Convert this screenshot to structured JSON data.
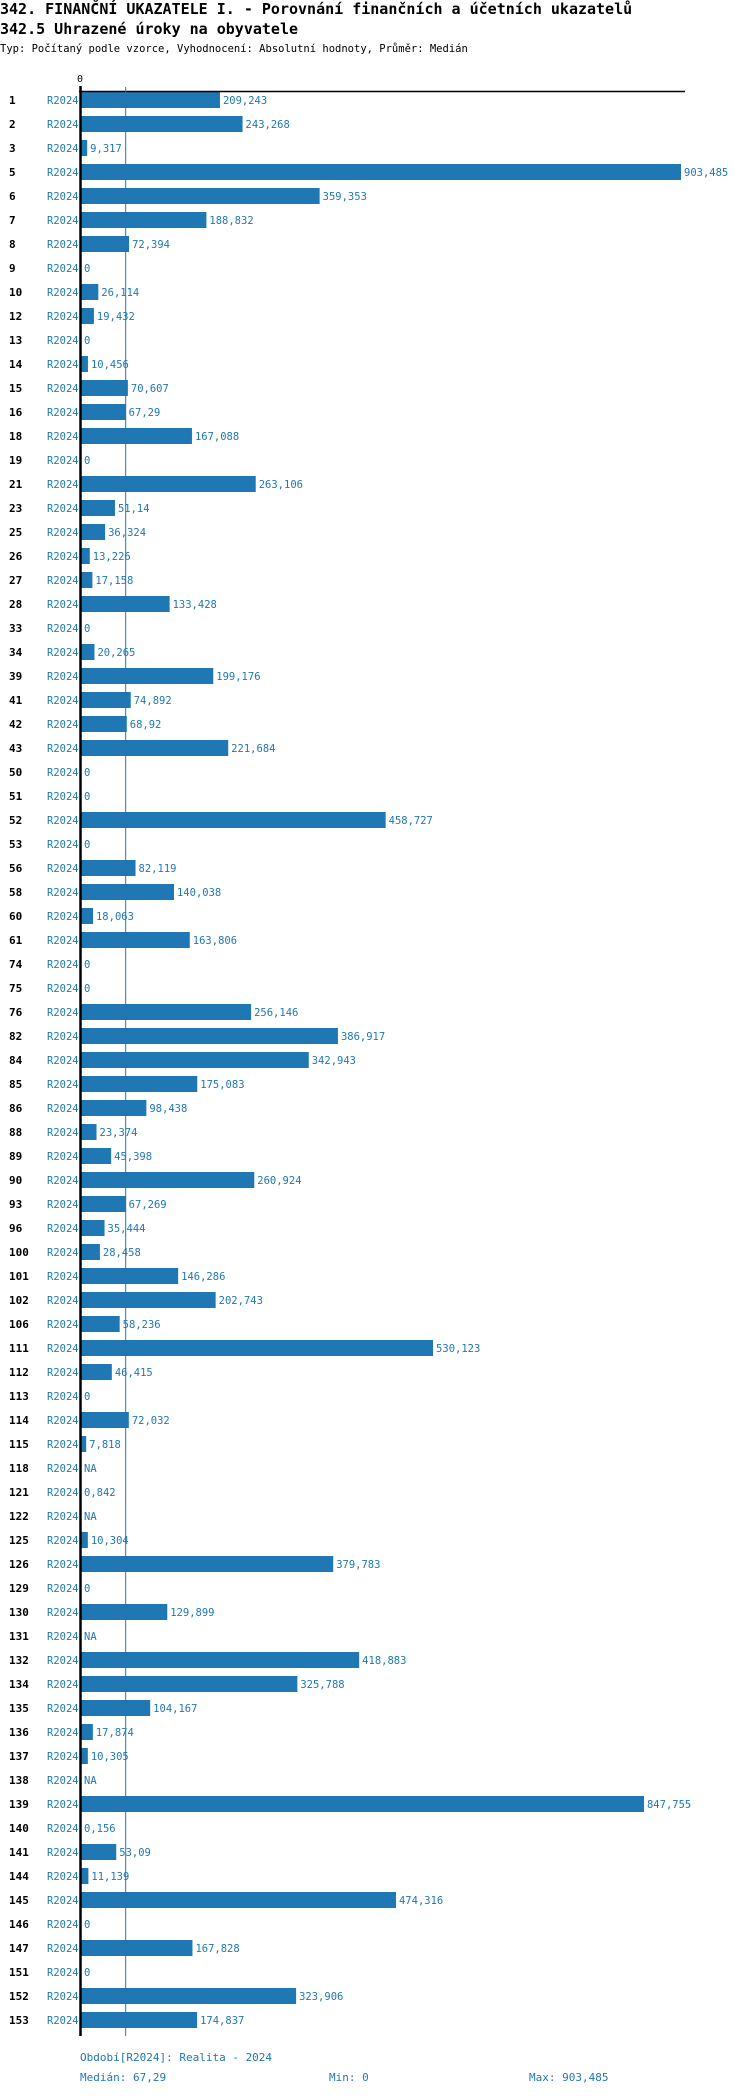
{
  "header": {
    "title": "342. FINANČNÍ UKAZATELE I. - Porovnání finančních a účetních ukazatelů",
    "subtitle": "342.5 Uhrazené úroky na obyvatele",
    "meta": "Typ: Počítaný podle vzorce, Vyhodnocení: Absolutní hodnoty, Průměr: Medián"
  },
  "colors": {
    "bar": "#1f77b4",
    "axis": "#000000",
    "text": "#1f77b4"
  },
  "chart_data": {
    "type": "bar",
    "orientation": "horizontal",
    "title": "342.5 Uhrazené úroky na obyvatele",
    "xlabel": "",
    "ylabel": "",
    "axis_zero_label": "0",
    "xlim": [
      0,
      903.485
    ],
    "median": 67.29,
    "period_label": "R2024",
    "categories": [
      "1",
      "2",
      "3",
      "5",
      "6",
      "7",
      "8",
      "9",
      "10",
      "12",
      "13",
      "14",
      "15",
      "16",
      "18",
      "19",
      "21",
      "23",
      "25",
      "26",
      "27",
      "28",
      "33",
      "34",
      "39",
      "41",
      "42",
      "43",
      "50",
      "51",
      "52",
      "53",
      "56",
      "58",
      "60",
      "61",
      "74",
      "75",
      "76",
      "82",
      "84",
      "85",
      "86",
      "88",
      "89",
      "90",
      "93",
      "96",
      "100",
      "101",
      "102",
      "106",
      "111",
      "112",
      "113",
      "114",
      "115",
      "118",
      "121",
      "122",
      "125",
      "126",
      "129",
      "130",
      "131",
      "132",
      "134",
      "135",
      "136",
      "137",
      "138",
      "139",
      "140",
      "141",
      "144",
      "145",
      "146",
      "147",
      "151",
      "152",
      "153"
    ],
    "values": [
      209.243,
      243.268,
      9.317,
      903.485,
      359.353,
      188.832,
      72.394,
      0,
      26.114,
      19.432,
      0,
      10.456,
      70.607,
      67.29,
      167.088,
      0,
      263.106,
      51.14,
      36.324,
      13.226,
      17.158,
      133.428,
      0,
      20.265,
      199.176,
      74.892,
      68.92,
      221.684,
      0,
      0,
      458.727,
      0,
      82.119,
      140.038,
      18.063,
      163.806,
      0,
      0,
      256.146,
      386.917,
      342.943,
      175.083,
      98.438,
      23.374,
      45.398,
      260.924,
      67.269,
      35.444,
      28.458,
      146.286,
      202.743,
      58.236,
      530.123,
      46.415,
      0,
      72.032,
      7.818,
      null,
      0.842,
      null,
      10.304,
      379.783,
      0,
      129.899,
      null,
      418.883,
      325.788,
      104.167,
      17.874,
      10.305,
      null,
      847.755,
      0.156,
      53.09,
      11.139,
      474.316,
      0,
      167.828,
      0,
      323.906,
      174.837
    ],
    "value_labels": [
      "209,243",
      "243,268",
      "9,317",
      "903,485",
      "359,353",
      "188,832",
      "72,394",
      "0",
      "26,114",
      "19,432",
      "0",
      "10,456",
      "70,607",
      "67,29",
      "167,088",
      "0",
      "263,106",
      "51,14",
      "36,324",
      "13,226",
      "17,158",
      "133,428",
      "0",
      "20,265",
      "199,176",
      "74,892",
      "68,92",
      "221,684",
      "0",
      "0",
      "458,727",
      "0",
      "82,119",
      "140,038",
      "18,063",
      "163,806",
      "0",
      "0",
      "256,146",
      "386,917",
      "342,943",
      "175,083",
      "98,438",
      "23,374",
      "45,398",
      "260,924",
      "67,269",
      "35,444",
      "28,458",
      "146,286",
      "202,743",
      "58,236",
      "530,123",
      "46,415",
      "0",
      "72,032",
      "7,818",
      "NA",
      "0,842",
      "NA",
      "10,304",
      "379,783",
      "0",
      "129,899",
      "NA",
      "418,883",
      "325,788",
      "104,167",
      "17,874",
      "10,305",
      "NA",
      "847,755",
      "0,156",
      "53,09",
      "11,139",
      "474,316",
      "0",
      "167,828",
      "0",
      "323,906",
      "174,837"
    ],
    "grid": false,
    "legend": "none"
  },
  "footer": {
    "period": "Období[R2024]: Realita - 2024",
    "median": "Medián: 67,29",
    "min": "Min: 0",
    "max": "Max: 903,485"
  }
}
